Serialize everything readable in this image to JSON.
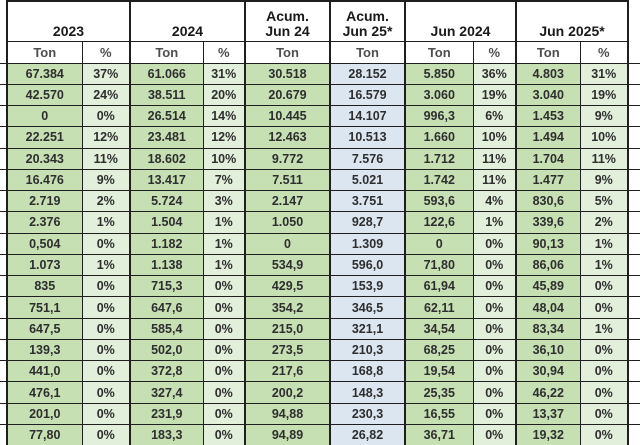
{
  "colors": {
    "ton_green": "#c6e0b4",
    "pct_light_green": "#e2efda",
    "acum_jun25_blue": "#dce6f1",
    "border": "#1f1f1f",
    "header_text": "#1a1a1a",
    "subheader_text": "#4d4d4d",
    "cell_text": "#2e2e2e"
  },
  "chart_data": {
    "type": "table",
    "column_groups": [
      {
        "line1": "",
        "line2": "2023",
        "colspan": 2
      },
      {
        "line1": "",
        "line2": "2024",
        "colspan": 2
      },
      {
        "line1": "Acum.",
        "line2": "Jun 24",
        "colspan": 1
      },
      {
        "line1": "Acum.",
        "line2": "Jun 25*",
        "colspan": 1
      },
      {
        "line1": "",
        "line2": "Jun 2024",
        "colspan": 2
      },
      {
        "line1": "",
        "line2": "Jun 2025*",
        "colspan": 2
      }
    ],
    "subheaders": [
      "Ton",
      "%",
      "Ton",
      "%",
      "Ton",
      "Ton",
      "Ton",
      "%",
      "Ton",
      "%"
    ],
    "rows": [
      [
        "67.384",
        "37%",
        "61.066",
        "31%",
        "30.518",
        "28.152",
        "5.850",
        "36%",
        "4.803",
        "31%"
      ],
      [
        "42.570",
        "24%",
        "38.511",
        "20%",
        "20.679",
        "16.579",
        "3.060",
        "19%",
        "3.040",
        "19%"
      ],
      [
        "0",
        "0%",
        "26.514",
        "14%",
        "10.445",
        "14.107",
        "996,3",
        "6%",
        "1.453",
        "9%"
      ],
      [
        "22.251",
        "12%",
        "23.481",
        "12%",
        "12.463",
        "10.513",
        "1.660",
        "10%",
        "1.494",
        "10%"
      ],
      [
        "20.343",
        "11%",
        "18.602",
        "10%",
        "9.772",
        "7.576",
        "1.712",
        "11%",
        "1.704",
        "11%"
      ],
      [
        "16.476",
        "9%",
        "13.417",
        "7%",
        "7.511",
        "5.021",
        "1.742",
        "11%",
        "1.477",
        "9%"
      ],
      [
        "2.719",
        "2%",
        "5.724",
        "3%",
        "2.147",
        "3.751",
        "593,6",
        "4%",
        "830,6",
        "5%"
      ],
      [
        "2.376",
        "1%",
        "1.504",
        "1%",
        "1.050",
        "928,7",
        "122,6",
        "1%",
        "339,6",
        "2%"
      ],
      [
        "0,504",
        "0%",
        "1.182",
        "1%",
        "0",
        "1.309",
        "0",
        "0%",
        "90,13",
        "1%"
      ],
      [
        "1.073",
        "1%",
        "1.138",
        "1%",
        "534,9",
        "596,0",
        "71,80",
        "0%",
        "86,06",
        "1%"
      ],
      [
        "835",
        "0%",
        "715,3",
        "0%",
        "429,5",
        "153,9",
        "61,94",
        "0%",
        "45,89",
        "0%"
      ],
      [
        "751,1",
        "0%",
        "647,6",
        "0%",
        "354,2",
        "346,5",
        "62,11",
        "0%",
        "48,04",
        "0%"
      ],
      [
        "647,5",
        "0%",
        "585,4",
        "0%",
        "215,0",
        "321,1",
        "34,54",
        "0%",
        "83,34",
        "1%"
      ],
      [
        "139,3",
        "0%",
        "502,0",
        "0%",
        "273,5",
        "210,3",
        "68,25",
        "0%",
        "36,10",
        "0%"
      ],
      [
        "441,0",
        "0%",
        "372,8",
        "0%",
        "217,6",
        "168,8",
        "19,54",
        "0%",
        "30,94",
        "0%"
      ],
      [
        "476,1",
        "0%",
        "327,4",
        "0%",
        "200,2",
        "148,3",
        "25,35",
        "0%",
        "46,22",
        "0%"
      ],
      [
        "201,0",
        "0%",
        "231,9",
        "0%",
        "94,88",
        "230,3",
        "16,55",
        "0%",
        "13,37",
        "0%"
      ],
      [
        "77,80",
        "0%",
        "183,3",
        "0%",
        "94,89",
        "26,82",
        "36,71",
        "0%",
        "19,32",
        "0%"
      ]
    ]
  }
}
